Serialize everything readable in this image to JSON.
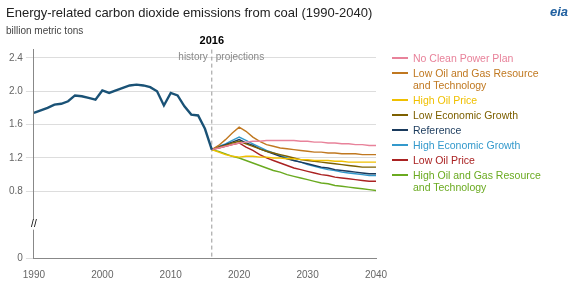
{
  "chart_data": {
    "type": "line",
    "title": "Energy-related carbon dioxide emissions from coal (1990-2040)",
    "ylabel": "billion metric tons",
    "xlim": [
      1990,
      2040
    ],
    "xticks": [
      1990,
      2000,
      2010,
      2020,
      2030,
      2040
    ],
    "ylim": [
      0,
      2.5
    ],
    "yticks": [
      0,
      0.8,
      1.2,
      1.6,
      {
        "value": 2.0,
        "label": "2.0"
      },
      2.4
    ],
    "grid": "y",
    "legend": "right",
    "vlines": [
      {
        "x": 2016,
        "label": "2016"
      }
    ],
    "annotations": [
      {
        "text": "history"
      },
      {
        "text": "projections"
      },
      {
        "text": "//"
      },
      {
        "text": "eia"
      }
    ],
    "series": [
      {
        "color": "#1a5276",
        "x": [
          1990,
          1991,
          1992,
          1993,
          1994,
          1995,
          1996,
          1997,
          1998,
          1999,
          2000,
          2001,
          2002,
          2003,
          2004,
          2005,
          2006,
          2007,
          2008,
          2009,
          2010,
          2011,
          2012,
          2013,
          2014,
          2015,
          2016
        ],
        "values": [
          1.74,
          1.77,
          1.8,
          1.84,
          1.85,
          1.88,
          1.95,
          1.94,
          1.92,
          1.9,
          2.01,
          1.98,
          2.01,
          2.04,
          2.07,
          2.08,
          2.07,
          2.05,
          2.0,
          1.83,
          1.98,
          1.95,
          1.82,
          1.72,
          1.71,
          1.55,
          1.3
        ]
      },
      {
        "name": "No Clean Power Plan",
        "color": "#e8829a",
        "x": [
          2016,
          2017,
          2018,
          2019,
          2020,
          2021,
          2022,
          2023,
          2024,
          2025,
          2026,
          2027,
          2028,
          2029,
          2030,
          2031,
          2032,
          2033,
          2034,
          2035,
          2036,
          2037,
          2038,
          2039,
          2040
        ],
        "values": [
          1.3,
          1.32,
          1.34,
          1.36,
          1.38,
          1.39,
          1.4,
          1.4,
          1.41,
          1.41,
          1.41,
          1.41,
          1.41,
          1.4,
          1.4,
          1.39,
          1.39,
          1.38,
          1.38,
          1.37,
          1.37,
          1.36,
          1.36,
          1.35,
          1.35
        ]
      },
      {
        "name": "Low Oil and Gas Resource\nand Technology",
        "color": "#c07820",
        "x": [
          2016,
          2017,
          2018,
          2019,
          2020,
          2021,
          2022,
          2023,
          2024,
          2025,
          2026,
          2027,
          2028,
          2029,
          2030,
          2031,
          2032,
          2033,
          2034,
          2035,
          2036,
          2037,
          2038,
          2039,
          2040
        ],
        "values": [
          1.3,
          1.35,
          1.42,
          1.5,
          1.57,
          1.52,
          1.45,
          1.4,
          1.36,
          1.34,
          1.32,
          1.31,
          1.3,
          1.29,
          1.28,
          1.27,
          1.27,
          1.26,
          1.26,
          1.25,
          1.25,
          1.25,
          1.24,
          1.24,
          1.24
        ]
      },
      {
        "name": "High Oil Price",
        "color": "#f0c000",
        "x": [
          2016,
          2017,
          2018,
          2019,
          2020,
          2021,
          2022,
          2023,
          2024,
          2025,
          2026,
          2027,
          2028,
          2029,
          2030,
          2031,
          2032,
          2033,
          2034,
          2035,
          2036,
          2037,
          2038,
          2039,
          2040
        ],
        "values": [
          1.3,
          1.27,
          1.24,
          1.22,
          1.21,
          1.22,
          1.22,
          1.21,
          1.21,
          1.2,
          1.2,
          1.19,
          1.19,
          1.18,
          1.18,
          1.17,
          1.17,
          1.17,
          1.16,
          1.16,
          1.15,
          1.15,
          1.15,
          1.15,
          1.15
        ]
      },
      {
        "name": "Low Economic Growth",
        "color": "#7d6000",
        "x": [
          2016,
          2017,
          2018,
          2019,
          2020,
          2021,
          2022,
          2023,
          2024,
          2025,
          2026,
          2027,
          2028,
          2029,
          2030,
          2031,
          2032,
          2033,
          2034,
          2035,
          2036,
          2037,
          2038,
          2039,
          2040
        ],
        "values": [
          1.3,
          1.33,
          1.35,
          1.38,
          1.4,
          1.37,
          1.34,
          1.31,
          1.28,
          1.26,
          1.24,
          1.22,
          1.2,
          1.18,
          1.17,
          1.16,
          1.15,
          1.14,
          1.13,
          1.12,
          1.11,
          1.1,
          1.09,
          1.09,
          1.09
        ]
      },
      {
        "name": "Reference",
        "color": "#1a3a5c",
        "x": [
          2016,
          2017,
          2018,
          2019,
          2020,
          2021,
          2022,
          2023,
          2024,
          2025,
          2026,
          2027,
          2028,
          2029,
          2030,
          2031,
          2032,
          2033,
          2034,
          2035,
          2036,
          2037,
          2038,
          2039,
          2040
        ],
        "values": [
          1.3,
          1.33,
          1.36,
          1.39,
          1.42,
          1.38,
          1.35,
          1.31,
          1.28,
          1.25,
          1.22,
          1.19,
          1.17,
          1.15,
          1.13,
          1.11,
          1.09,
          1.08,
          1.06,
          1.05,
          1.04,
          1.03,
          1.02,
          1.01,
          1.01
        ]
      },
      {
        "name": "High Economic Growth",
        "color": "#3399cc",
        "x": [
          2016,
          2017,
          2018,
          2019,
          2020,
          2021,
          2022,
          2023,
          2024,
          2025,
          2026,
          2027,
          2028,
          2029,
          2030,
          2031,
          2032,
          2033,
          2034,
          2035,
          2036,
          2037,
          2038,
          2039,
          2040
        ],
        "values": [
          1.3,
          1.34,
          1.37,
          1.41,
          1.45,
          1.41,
          1.37,
          1.33,
          1.29,
          1.26,
          1.23,
          1.2,
          1.17,
          1.15,
          1.12,
          1.1,
          1.08,
          1.06,
          1.05,
          1.03,
          1.02,
          1.01,
          1.0,
          0.99,
          0.99
        ]
      },
      {
        "name": "Low Oil Price",
        "color": "#aa2222",
        "x": [
          2016,
          2017,
          2018,
          2019,
          2020,
          2021,
          2022,
          2023,
          2024,
          2025,
          2026,
          2027,
          2028,
          2029,
          2030,
          2031,
          2032,
          2033,
          2034,
          2035,
          2036,
          2037,
          2038,
          2039,
          2040
        ],
        "values": [
          1.3,
          1.32,
          1.34,
          1.36,
          1.38,
          1.33,
          1.29,
          1.24,
          1.2,
          1.17,
          1.14,
          1.11,
          1.08,
          1.06,
          1.04,
          1.02,
          1.0,
          0.99,
          0.97,
          0.96,
          0.95,
          0.94,
          0.93,
          0.92,
          0.92
        ]
      },
      {
        "name": "High Oil and Gas Resource\nand Technology",
        "color": "#6aaa20",
        "x": [
          2016,
          2017,
          2018,
          2019,
          2020,
          2021,
          2022,
          2023,
          2024,
          2025,
          2026,
          2027,
          2028,
          2029,
          2030,
          2031,
          2032,
          2033,
          2034,
          2035,
          2036,
          2037,
          2038,
          2039,
          2040
        ],
        "values": [
          1.3,
          1.28,
          1.25,
          1.22,
          1.2,
          1.17,
          1.14,
          1.11,
          1.08,
          1.05,
          1.03,
          1.0,
          0.98,
          0.96,
          0.94,
          0.92,
          0.9,
          0.89,
          0.87,
          0.86,
          0.85,
          0.84,
          0.83,
          0.82,
          0.81
        ]
      }
    ]
  }
}
